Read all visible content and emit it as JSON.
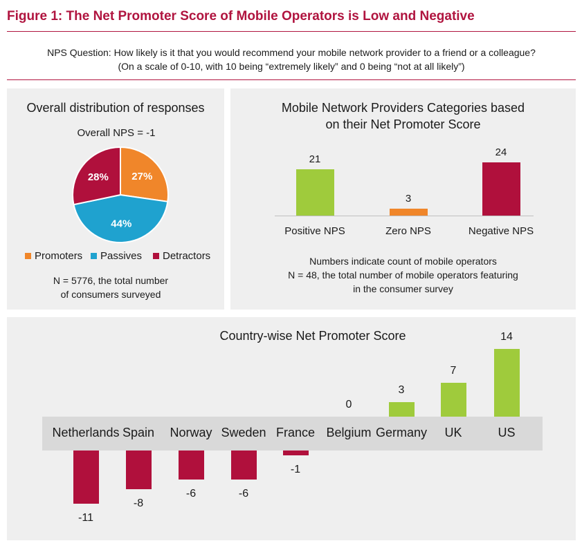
{
  "figure_title": "Figure 1: The Net Promoter Score of Mobile Operators is Low and Negative",
  "question": {
    "line1": "NPS Question: How likely is it that you would recommend your mobile network provider to a friend or a colleague?",
    "line2": "(On a scale of 0-10, with 10 being “extremely likely” and 0 being “not at all likely”)"
  },
  "colors": {
    "accent": "#b0143f",
    "promoters": "#f0862a",
    "passives": "#1fa2cf",
    "detractors": "#b0103c",
    "positive": "#9fcb3c",
    "zero": "#f0862a",
    "negative": "#b0103c",
    "panel": "#efefef",
    "band": "#d9d9d9"
  },
  "chart_data": [
    {
      "type": "pie",
      "title": "Overall distribution of responses",
      "subtitle": "Overall NPS = -1",
      "slices": [
        {
          "name": "Promoters",
          "value": 27,
          "label": "27%"
        },
        {
          "name": "Passives",
          "value": 44,
          "label": "44%"
        },
        {
          "name": "Detractors",
          "value": 28,
          "label": "28%"
        }
      ],
      "legend": [
        "Promoters",
        "Passives",
        "Detractors"
      ],
      "legend_position": "bottom",
      "note_line1": "N = 5776, the total number",
      "note_line2": "of consumers surveyed"
    },
    {
      "type": "bar",
      "title_line1": "Mobile Network Providers Categories based",
      "title_line2": "on their Net Promoter Score",
      "categories": [
        "Positive NPS",
        "Zero NPS",
        "Negative NPS"
      ],
      "values": [
        21,
        3,
        24
      ],
      "ylim": [
        0,
        24
      ],
      "note_line1": "Numbers indicate count of mobile operators",
      "note_line2": "N = 48, the total number of mobile operators featuring",
      "note_line3": "in the consumer survey"
    },
    {
      "type": "bar",
      "title": "Country-wise Net Promoter Score",
      "categories": [
        "Netherlands",
        "Spain",
        "Norway",
        "Sweden",
        "France",
        "Belgium",
        "Germany",
        "UK",
        "US"
      ],
      "values": [
        -11,
        -8,
        -6,
        -6,
        -1,
        0,
        3,
        7,
        14
      ],
      "ylim": [
        -11,
        14
      ]
    }
  ]
}
